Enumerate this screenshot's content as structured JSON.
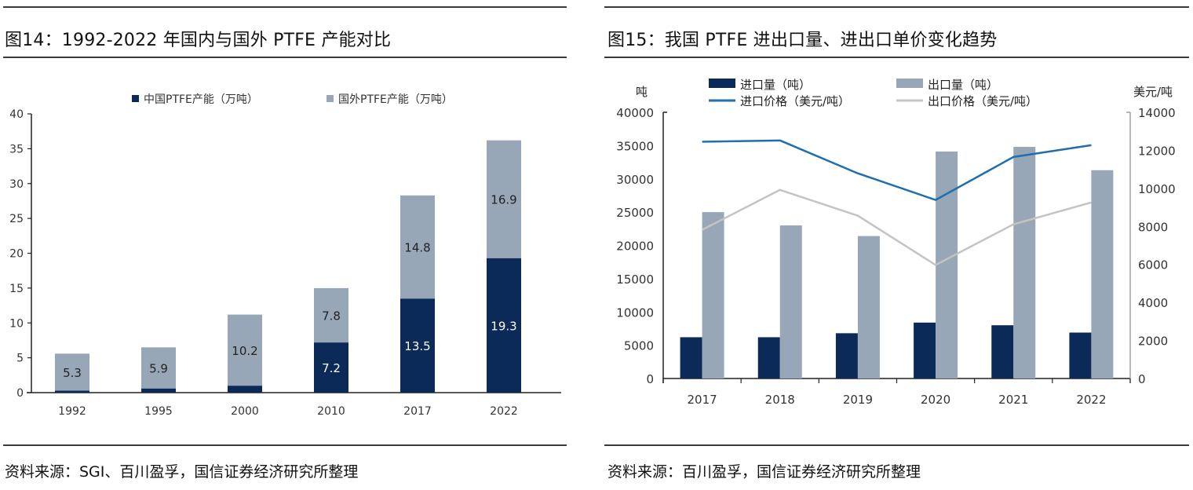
{
  "left": {
    "title": "图14：1992-2022 年国内与国外 PTFE 产能对比",
    "source": "资料来源：SGI、百川盈孚，国信证券经济研究所整理"
  },
  "right": {
    "title": "图15：我国 PTFE 进出口量、进出口单价变化趋势",
    "source": "资料来源：百川盈孚，国信证券经济研究所整理"
  },
  "colors": {
    "navy": "#0b2a57",
    "steel": "#97a7b8",
    "import_price_line": "#1f6fae",
    "export_price_line": "#c4c4c4"
  },
  "chart_data": [
    {
      "type": "bar",
      "stacked": true,
      "title": "1992-2022 年国内与国外 PTFE 产能对比",
      "categories": [
        "1992",
        "1995",
        "2000",
        "2010",
        "2017",
        "2022"
      ],
      "series": [
        {
          "name": "中国PTFE产能（万吨）",
          "values": [
            0.3,
            0.6,
            1.0,
            7.2,
            13.5,
            19.3
          ],
          "labels": [
            "",
            "",
            "",
            "7.2",
            "13.5",
            "19.3"
          ]
        },
        {
          "name": "国外PTFE产能（万吨）",
          "values": [
            5.3,
            5.9,
            10.2,
            7.8,
            14.8,
            16.9
          ],
          "labels": [
            "5.3",
            "5.9",
            "10.2",
            "7.8",
            "14.8",
            "16.9"
          ]
        }
      ],
      "xlabel": "",
      "ylabel": "",
      "ylim": [
        0,
        40
      ],
      "yticks": [
        "0",
        "5",
        "10",
        "15",
        "20",
        "25",
        "30",
        "35",
        "40"
      ],
      "legend": "top-center",
      "grid": false
    },
    {
      "type": "bar",
      "title": "我国 PTFE 进出口量、进出口单价变化趋势",
      "categories": [
        "2017",
        "2018",
        "2019",
        "2020",
        "2021",
        "2022"
      ],
      "series": [
        {
          "name": "进口量（吨）",
          "type": "bar",
          "axis": "left",
          "values": [
            6200,
            6200,
            6800,
            8400,
            8000,
            6900
          ]
        },
        {
          "name": "出口量（吨）",
          "type": "bar",
          "axis": "left",
          "values": [
            25000,
            23000,
            21400,
            34100,
            34800,
            31300
          ]
        },
        {
          "name": "进口价格（美元/吨）",
          "type": "line",
          "axis": "right",
          "values": [
            12450,
            12520,
            10790,
            9390,
            11650,
            12270
          ]
        },
        {
          "name": "出口价格（美元/吨）",
          "type": "line",
          "axis": "right",
          "values": [
            7820,
            9920,
            8560,
            5970,
            8110,
            9260
          ]
        }
      ],
      "ylabel": "吨",
      "y2label": "美元/吨",
      "ylim": [
        0,
        40000
      ],
      "y2lim": [
        0,
        14000
      ],
      "yticks": [
        "0",
        "5000",
        "10000",
        "15000",
        "20000",
        "25000",
        "30000",
        "35000",
        "40000"
      ],
      "y2ticks": [
        "0",
        "2000",
        "4000",
        "6000",
        "8000",
        "10000",
        "12000",
        "14000"
      ],
      "legend": "top-center",
      "grid": false
    }
  ]
}
